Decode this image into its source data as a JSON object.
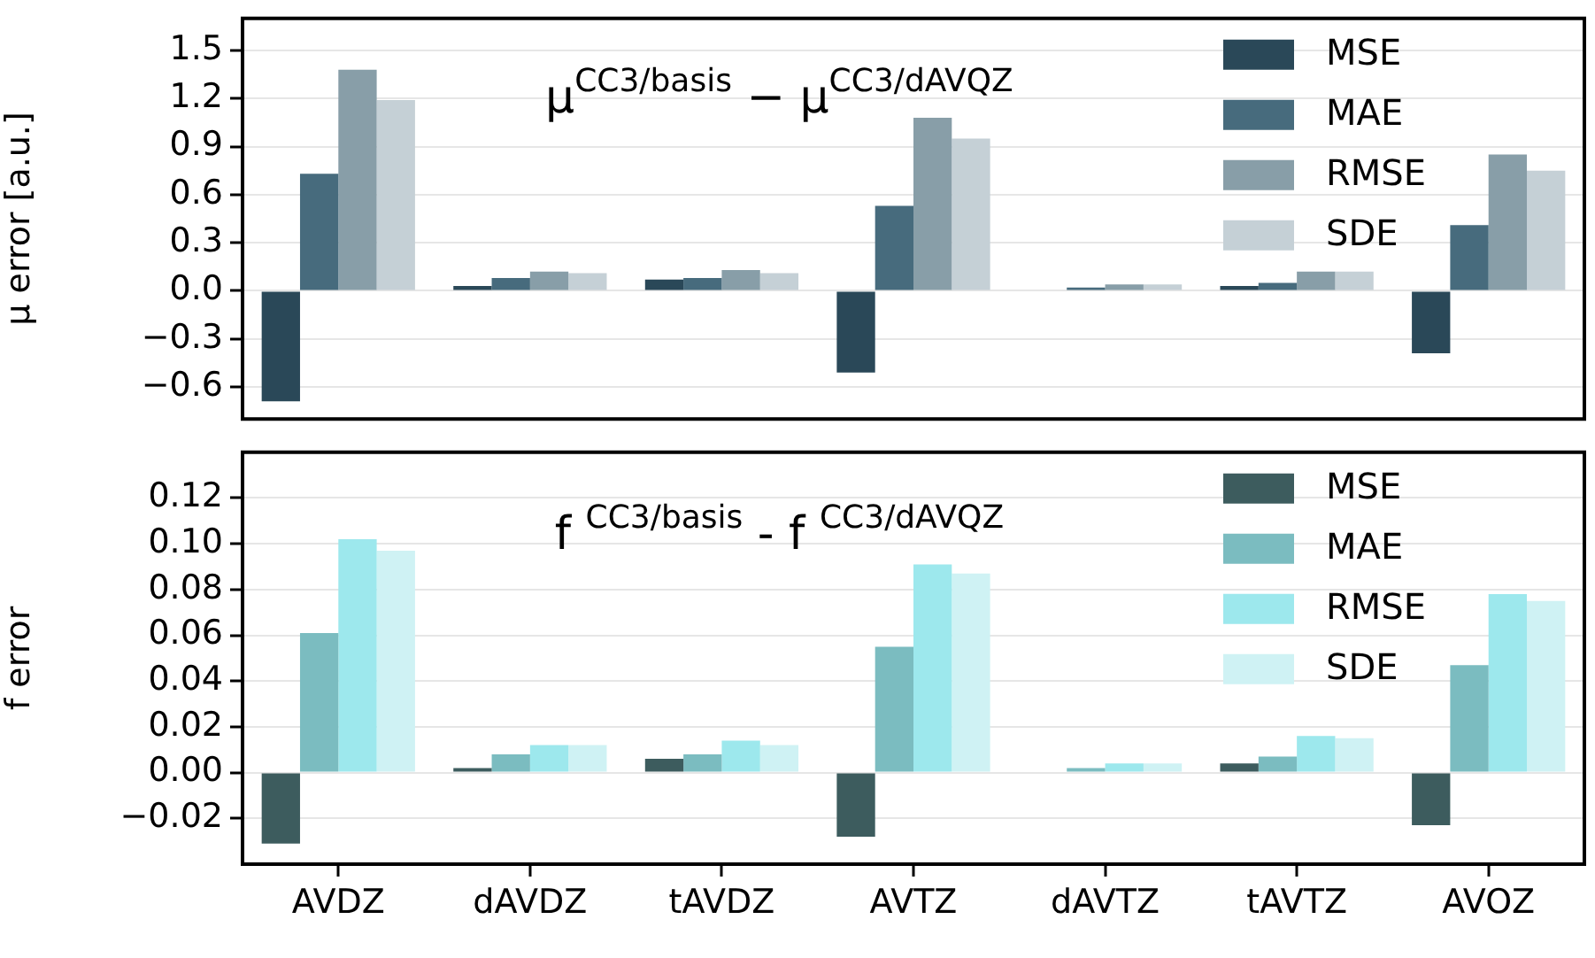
{
  "chart_data": [
    {
      "type": "bar",
      "title": "μ$^{CC3/basis}$ − μ$^{CC3/dAVQZ}$",
      "ylabel": "μ error [a.u.]",
      "categories": [
        null,
        null,
        null,
        null,
        null,
        null,
        null
      ],
      "series": [
        {
          "name": "MSE",
          "color": "#2a4858",
          "values": [
            -0.69,
            0.03,
            0.07,
            -0.51,
            0.0,
            0.03,
            -0.39
          ]
        },
        {
          "name": "MAE",
          "color": "#476b7d",
          "values": [
            0.73,
            0.08,
            0.08,
            0.53,
            0.02,
            0.05,
            0.41
          ]
        },
        {
          "name": "RMSE",
          "color": "#889ea8",
          "values": [
            1.38,
            0.12,
            0.13,
            1.08,
            0.04,
            0.12,
            0.85
          ]
        },
        {
          "name": "SDE",
          "color": "#c5d0d6",
          "values": [
            1.19,
            0.11,
            0.11,
            0.95,
            0.04,
            0.12,
            0.75
          ]
        }
      ],
      "ylim": [
        -0.8,
        1.7
      ],
      "yticks": [
        {
          "value": -0.6,
          "label": "−0.6"
        },
        {
          "value": -0.3,
          "label": "−0.3"
        },
        {
          "value": 0,
          "label": "0.0"
        },
        0.3,
        0.6,
        0.9,
        1.2,
        1.5
      ],
      "grid": "y",
      "legend": "top right",
      "tick_labels": "y"
    },
    {
      "type": "bar",
      "title": "f $^{CC3/basis}$ - f $^{CC3/dAVQZ}$",
      "ylabel": "f error",
      "categories": [
        "AVDZ",
        "dAVDZ",
        "tAVDZ",
        "AVTZ",
        "dAVTZ",
        "tAVTZ",
        "AVOZ"
      ],
      "series": [
        {
          "name": "MSE",
          "color": "#3d5c5e",
          "values": [
            -0.031,
            0.002,
            0.006,
            -0.028,
            0.0,
            0.004,
            -0.023
          ]
        },
        {
          "name": "MAE",
          "color": "#7bbcc0",
          "values": [
            0.061,
            0.008,
            0.008,
            0.055,
            0.002,
            0.007,
            0.047
          ]
        },
        {
          "name": "RMSE",
          "color": "#9de8ed",
          "values": [
            0.102,
            0.012,
            0.014,
            0.091,
            0.004,
            0.016,
            0.078
          ]
        },
        {
          "name": "SDE",
          "color": "#cff2f4",
          "values": [
            0.097,
            0.012,
            0.012,
            0.087,
            0.004,
            0.015,
            0.075
          ]
        }
      ],
      "ylim": [
        -0.04,
        0.14
      ],
      "yticks": [
        {
          "value": -0.02,
          "label": "−0.02"
        },
        {
          "value": 0,
          "label": "0.00"
        },
        0.02,
        0.04,
        0.06,
        0.08,
        {
          "value": 0.1,
          "label": "0.10"
        },
        0.12
      ],
      "grid": "y",
      "legend": "top right"
    }
  ]
}
